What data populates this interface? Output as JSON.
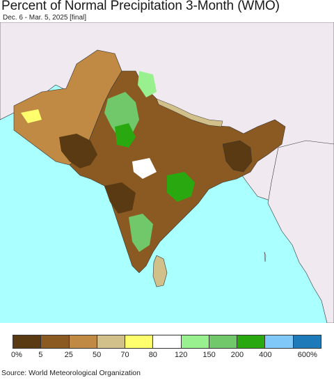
{
  "header": {
    "title": "Percent of Normal Precipitation 3-Month (WMO)",
    "subtitle": "Dec. 6 - Mar. 5, 2025 [final]"
  },
  "map": {
    "region": "South Asia",
    "colors": {
      "ocean": "#aaffff",
      "land_outside": "#f0eaf0",
      "border": "#222222"
    }
  },
  "legend": {
    "swatches": [
      {
        "color": "#5a3a12"
      },
      {
        "color": "#8b5a22"
      },
      {
        "color": "#c08a45"
      },
      {
        "color": "#d2c08a"
      },
      {
        "color": "#ffff6e"
      },
      {
        "color": "#ffffff"
      },
      {
        "color": "#98f08e"
      },
      {
        "color": "#70c86a"
      },
      {
        "color": "#2aa810"
      },
      {
        "color": "#80c8f8"
      },
      {
        "color": "#1e7ab8"
      }
    ],
    "labels": [
      "0%",
      "5",
      "25",
      "50",
      "70",
      "80",
      "120",
      "150",
      "200",
      "400",
      "600%"
    ]
  },
  "footer": {
    "source": "Source: World Meteorological Organization"
  }
}
